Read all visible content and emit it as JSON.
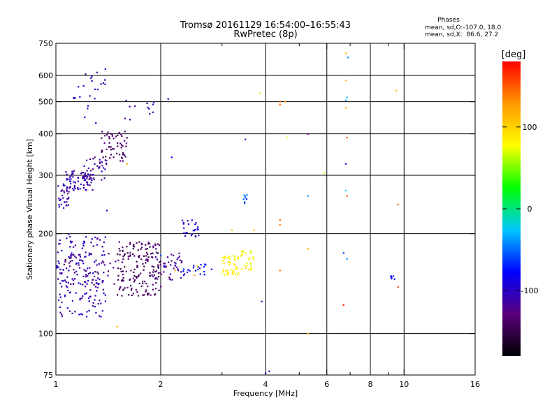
{
  "chart_data": {
    "type": "scatter",
    "title": "Tromsø 20161129 16:54:00–16:55:43",
    "subtitle": "RwPretec (8p)",
    "xlabel": "Frequency [MHz]",
    "ylabel": "Stationary phase Virtual Height [km]",
    "x_scale": "log",
    "y_scale": "log",
    "xlim": [
      1,
      16
    ],
    "ylim": [
      75,
      750
    ],
    "x_ticks": [
      1,
      2,
      4,
      6,
      8,
      10,
      16
    ],
    "x_tick_labels": [
      "1",
      "2",
      "4",
      "6",
      "8",
      "10",
      "16"
    ],
    "x_minor_ticks": [
      3,
      5,
      7,
      9
    ],
    "y_ticks": [
      75,
      100,
      200,
      300,
      400,
      500,
      600,
      750
    ],
    "y_tick_labels": [
      "75",
      "100",
      "200",
      "300",
      "400",
      "500",
      "600",
      "750"
    ],
    "grid": true,
    "legend": {
      "title": "Phases",
      "line1": "mean, sd,O:-107.0, 18.0",
      "line2": "mean, sd,X:  86.6, 27.2",
      "position": "top-right"
    },
    "colorbar": {
      "label": "[deg]",
      "range": [
        -180,
        180
      ],
      "ticks": [
        100,
        0,
        -100
      ],
      "tick_labels": [
        "100",
        "0",
        "-100"
      ],
      "colors": [
        "#000000",
        "#5a007a",
        "#0000ff",
        "#00c8ff",
        "#00ff00",
        "#ffff00",
        "#ff9900",
        "#ff0000"
      ]
    },
    "clusters": [
      {
        "f": [
          1.0,
          1.09
        ],
        "h": [
          235,
          285
        ],
        "phase": -110,
        "count": 30
      },
      {
        "f": [
          1.05,
          1.28
        ],
        "h": [
          270,
          310
        ],
        "phase": -108,
        "count": 70
      },
      {
        "f": [
          1.2,
          1.4
        ],
        "h": [
          290,
          345
        ],
        "phase": -115,
        "count": 40
      },
      {
        "f": [
          1.35,
          1.6
        ],
        "h": [
          330,
          410
        ],
        "phase": -135,
        "count": 55
      },
      {
        "f": [
          1.1,
          1.32
        ],
        "h": [
          430,
          560
        ],
        "phase": -105,
        "count": 14
      },
      {
        "f": [
          1.2,
          1.4
        ],
        "h": [
          560,
          650
        ],
        "phase": -110,
        "count": 10
      },
      {
        "f": [
          1.55,
          1.95
        ],
        "h": [
          440,
          510
        ],
        "phase": -110,
        "count": 12
      },
      {
        "f": [
          1.0,
          1.4
        ],
        "h": [
          112,
          200
        ],
        "phase": -105,
        "count": 180
      },
      {
        "f": [
          1.05,
          1.5
        ],
        "h": [
          140,
          175
        ],
        "phase": -130,
        "count": 40
      },
      {
        "f": [
          1.5,
          2.0
        ],
        "h": [
          130,
          190
        ],
        "phase": -138,
        "count": 170
      },
      {
        "f": [
          1.9,
          2.35
        ],
        "h": [
          145,
          175
        ],
        "phase": -120,
        "count": 45
      },
      {
        "f": [
          2.3,
          2.6
        ],
        "h": [
          195,
          220
        ],
        "phase": -95,
        "count": 25
      },
      {
        "f": [
          2.3,
          2.8
        ],
        "h": [
          150,
          162
        ],
        "phase": -80,
        "count": 20
      },
      {
        "f": [
          3.0,
          3.35
        ],
        "h": [
          150,
          172
        ],
        "phase": 85,
        "count": 45
      },
      {
        "f": [
          3.4,
          3.7
        ],
        "h": [
          155,
          178
        ],
        "phase": 80,
        "count": 25
      },
      {
        "f": [
          3.45,
          3.55
        ],
        "h": [
          245,
          262
        ],
        "phase": -50,
        "count": 8
      },
      {
        "f": [
          9.1,
          9.4
        ],
        "h": [
          145,
          150
        ],
        "phase": -85,
        "count": 6
      }
    ],
    "points": [
      {
        "x": 1.5,
        "y": 105,
        "p": 115
      },
      {
        "x": 1.6,
        "y": 325,
        "p": 120
      },
      {
        "x": 1.4,
        "y": 235,
        "p": -95
      },
      {
        "x": 2.1,
        "y": 510,
        "p": -95
      },
      {
        "x": 2.15,
        "y": 340,
        "p": -85
      },
      {
        "x": 3.5,
        "y": 385,
        "p": -105
      },
      {
        "x": 3.85,
        "y": 530,
        "p": 60
      },
      {
        "x": 3.9,
        "y": 125,
        "p": -110
      },
      {
        "x": 4.0,
        "y": 76,
        "p": -90
      },
      {
        "x": 4.1,
        "y": 77,
        "p": -90
      },
      {
        "x": 4.4,
        "y": 500,
        "p": 150
      },
      {
        "x": 4.4,
        "y": 490,
        "p": 150
      },
      {
        "x": 4.4,
        "y": 220,
        "p": 145
      },
      {
        "x": 4.4,
        "y": 213,
        "p": 140
      },
      {
        "x": 4.4,
        "y": 155,
        "p": 150
      },
      {
        "x": 4.55,
        "y": 500,
        "p": 120
      },
      {
        "x": 4.6,
        "y": 390,
        "p": 85
      },
      {
        "x": 5.3,
        "y": 400,
        "p": -130
      },
      {
        "x": 5.3,
        "y": 260,
        "p": -40
      },
      {
        "x": 5.3,
        "y": 180,
        "p": 115
      },
      {
        "x": 5.3,
        "y": 100,
        "p": 115
      },
      {
        "x": 5.9,
        "y": 305,
        "p": 75
      },
      {
        "x": 6.8,
        "y": 700,
        "p": 115
      },
      {
        "x": 6.9,
        "y": 680,
        "p": -40
      },
      {
        "x": 6.8,
        "y": 580,
        "p": 110
      },
      {
        "x": 6.85,
        "y": 515,
        "p": -30
      },
      {
        "x": 6.8,
        "y": 505,
        "p": -30
      },
      {
        "x": 6.8,
        "y": 480,
        "p": 110
      },
      {
        "x": 6.85,
        "y": 390,
        "p": 150
      },
      {
        "x": 6.8,
        "y": 325,
        "p": -75
      },
      {
        "x": 6.8,
        "y": 270,
        "p": -30
      },
      {
        "x": 6.85,
        "y": 260,
        "p": 150
      },
      {
        "x": 6.7,
        "y": 175,
        "p": -60
      },
      {
        "x": 6.85,
        "y": 168,
        "p": -40
      },
      {
        "x": 6.7,
        "y": 122,
        "p": 175
      },
      {
        "x": 9.5,
        "y": 540,
        "p": 115
      },
      {
        "x": 9.6,
        "y": 245,
        "p": 150
      },
      {
        "x": 9.6,
        "y": 138,
        "p": 160
      },
      {
        "x": 2.05,
        "y": 160,
        "p": -80
      },
      {
        "x": 2.0,
        "y": 172,
        "p": -60
      },
      {
        "x": 2.2,
        "y": 155,
        "p": 120
      },
      {
        "x": 2.5,
        "y": 150,
        "p": 120
      },
      {
        "x": 2.55,
        "y": 160,
        "p": 100
      },
      {
        "x": 3.2,
        "y": 205,
        "p": 110
      },
      {
        "x": 3.7,
        "y": 205,
        "p": 110
      }
    ]
  }
}
